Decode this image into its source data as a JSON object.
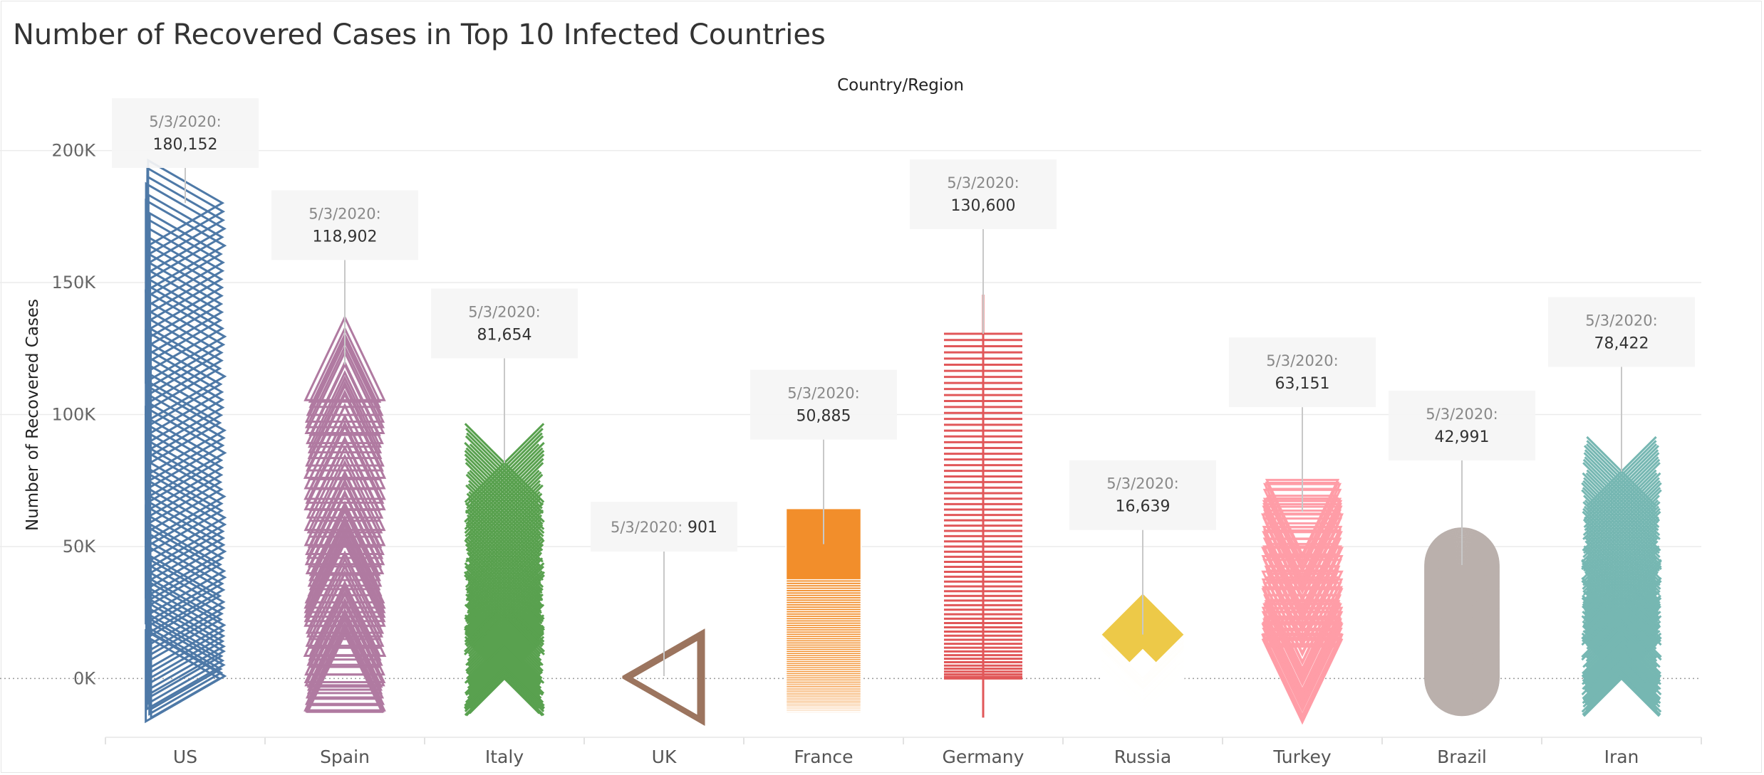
{
  "chart_data": {
    "type": "scatter",
    "title": "Number of Recovered Cases in Top 10 Infected Countries",
    "column_header": "Country/Region",
    "ylabel": "Number of Recovered Cases",
    "ylim": [
      -22000,
      222000
    ],
    "yticks": [
      {
        "value": 0,
        "label": "0K"
      },
      {
        "value": 50000,
        "label": "50K"
      },
      {
        "value": 100000,
        "label": "100K"
      },
      {
        "value": 150000,
        "label": "150K"
      },
      {
        "value": 200000,
        "label": "200K"
      }
    ],
    "gridlines": true,
    "categories": [
      {
        "name": "US",
        "color": "#4e79a7",
        "shape": "triangle-right",
        "date": "5/3/2020:",
        "value_label": "180,152",
        "latest": 180152
      },
      {
        "name": "Spain",
        "color": "#b07aa1",
        "shape": "triangle-up",
        "date": "5/3/2020:",
        "value_label": "118,902",
        "latest": 118902
      },
      {
        "name": "Italy",
        "color": "#59a14f",
        "shape": "x",
        "date": "5/3/2020:",
        "value_label": "81,654",
        "latest": 81654
      },
      {
        "name": "UK",
        "color": "#9c755f",
        "shape": "triangle-left",
        "date": "5/3/2020:",
        "value_label": "901",
        "latest": 901
      },
      {
        "name": "France",
        "color": "#f28e2b",
        "shape": "square",
        "date": "5/3/2020:",
        "value_label": "50,885",
        "latest": 50885
      },
      {
        "name": "Germany",
        "color": "#e15759",
        "shape": "plus",
        "date": "5/3/2020:",
        "value_label": "130,600",
        "latest": 130600
      },
      {
        "name": "Russia",
        "color": "#edc948",
        "shape": "diamond",
        "date": "5/3/2020:",
        "value_label": "16,639",
        "latest": 16639
      },
      {
        "name": "Turkey",
        "color": "#ff9da7",
        "shape": "triangle-down",
        "date": "5/3/2020:",
        "value_label": "63,151",
        "latest": 63151
      },
      {
        "name": "Brazil",
        "color": "#bab0ac",
        "shape": "circle",
        "date": "5/3/2020:",
        "value_label": "42,991",
        "latest": 42991
      },
      {
        "name": "Iran",
        "color": "#76b7b2",
        "shape": "x",
        "date": "5/3/2020:",
        "value_label": "78,422",
        "latest": 78422
      }
    ]
  }
}
